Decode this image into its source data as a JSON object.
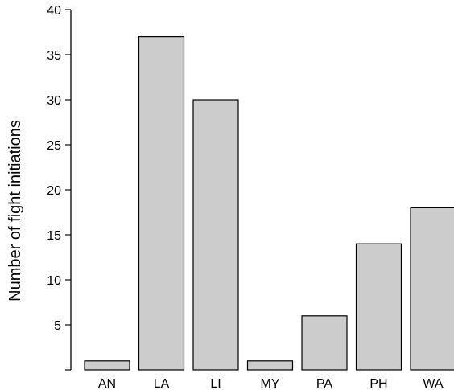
{
  "chart_data": {
    "type": "bar",
    "title": "",
    "xlabel": "",
    "ylabel": "Number of fight initiations",
    "categories": [
      "AN",
      "LA",
      "LI",
      "MY",
      "PA",
      "PH",
      "WA"
    ],
    "values": [
      1,
      37,
      30,
      1,
      6,
      14,
      18
    ],
    "ylim": [
      0,
      40
    ],
    "yticks": [
      5,
      10,
      15,
      20,
      25,
      30,
      35,
      40
    ],
    "grid": false,
    "bar_color": "#cccccc",
    "bar_edge_color": "#000000"
  }
}
